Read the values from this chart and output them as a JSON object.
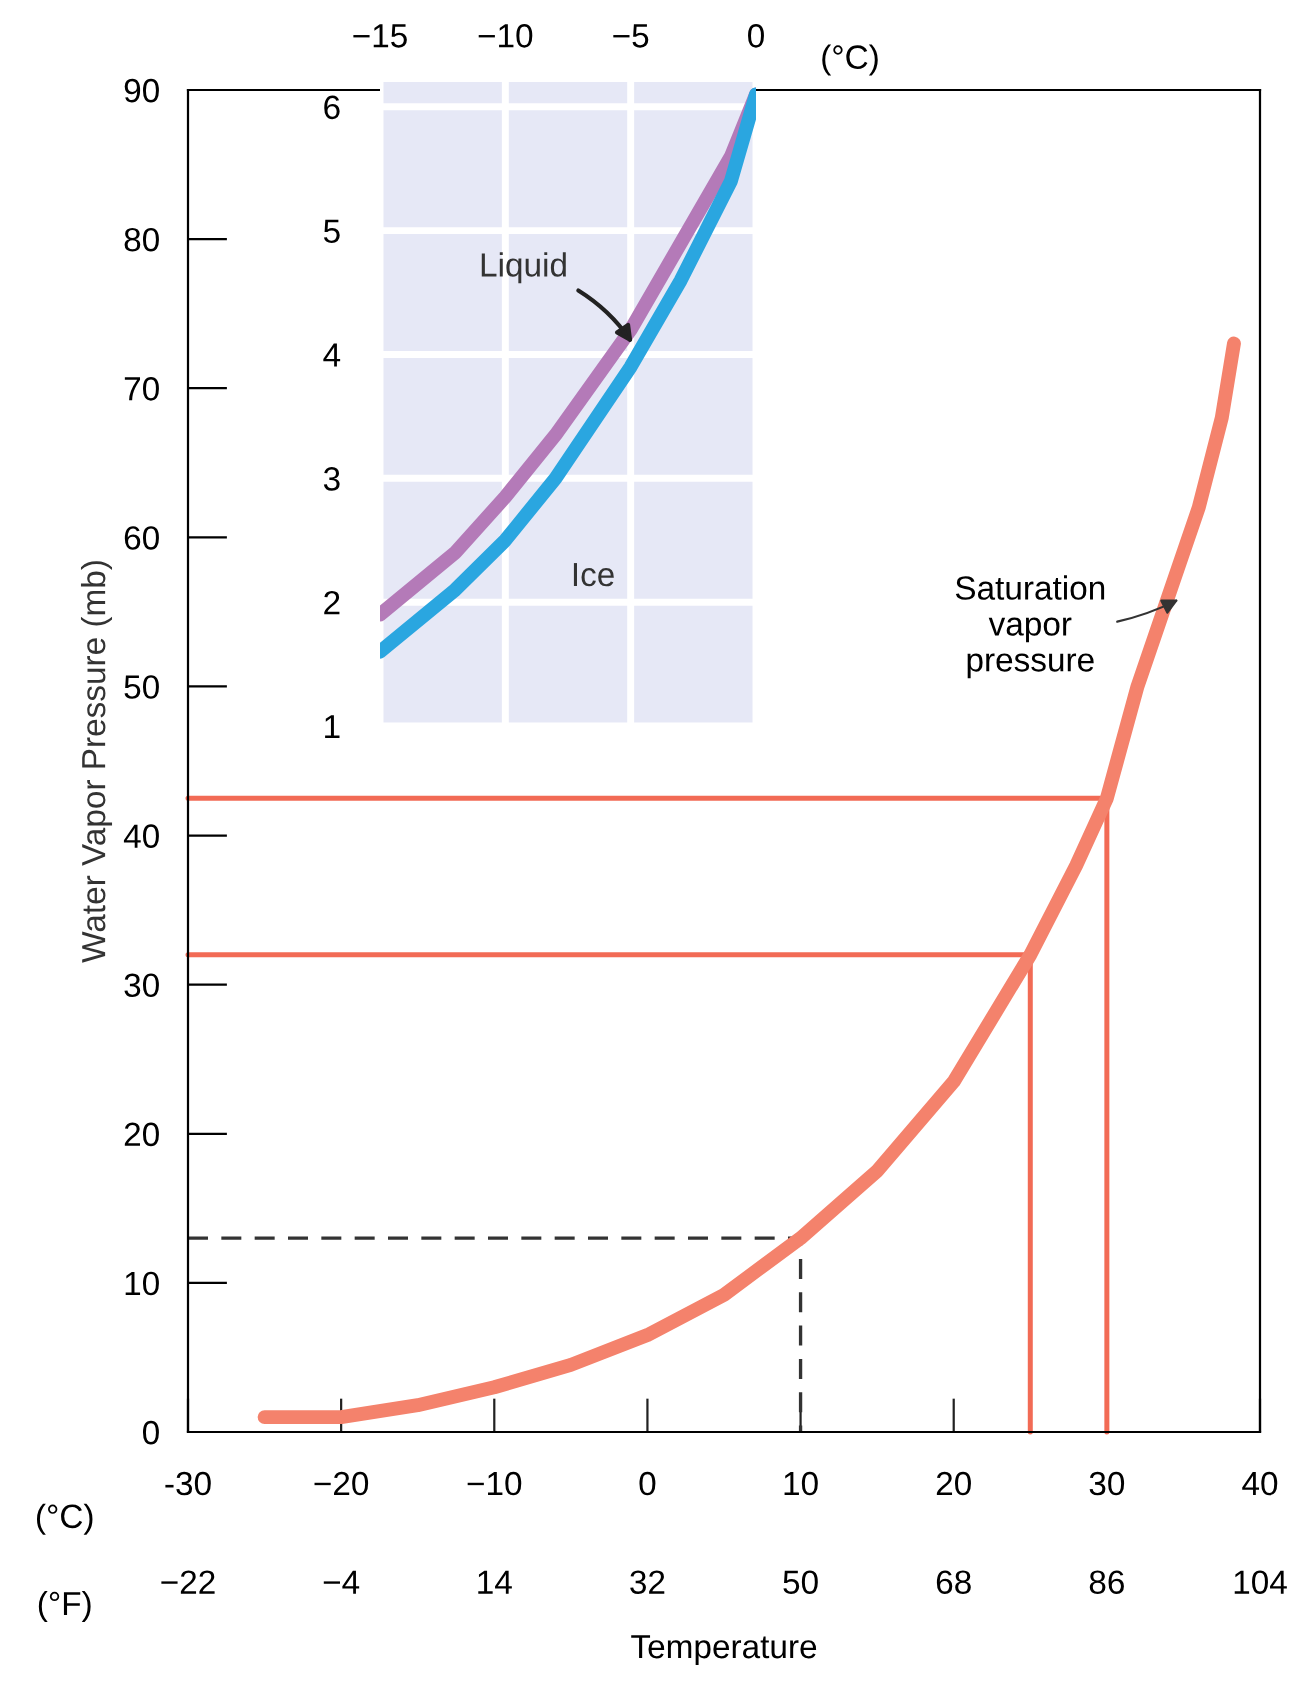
{
  "chart_data": [
    {
      "type": "line",
      "xlabel": "Temperature",
      "ylabel": "Water Vapor Pressure (mb)",
      "xlim": [
        -30,
        40
      ],
      "xticks": [
        -30,
        {
          "value": -20,
          "label": "−20"
        },
        {
          "value": -10,
          "label": "−10"
        },
        0,
        10,
        20,
        30,
        40
      ],
      "x2lim": [
        -22,
        104
      ],
      "x2ticks": [
        {
          "value": -22,
          "label": "−22"
        },
        {
          "value": -4,
          "label": "−4"
        },
        14,
        32,
        50,
        68,
        86,
        104
      ],
      "ylim": [
        0,
        90
      ],
      "yticks": [
        0,
        10,
        20,
        30,
        40,
        50,
        60,
        70,
        80,
        90
      ],
      "grid": false,
      "series": [
        {
          "color": "#f4826c",
          "x": [
            -25,
            -20,
            -15,
            -10,
            -5,
            0,
            5,
            10,
            15,
            20,
            25,
            28,
            30,
            32,
            34,
            36,
            37.5,
            38.3
          ],
          "values": [
            1,
            1,
            1.8,
            3,
            4.5,
            6.5,
            9.2,
            13,
            17.5,
            23.5,
            32,
            38,
            42.5,
            50,
            56,
            62,
            68,
            73
          ]
        },
        {
          "color": "#f26b55",
          "x": [
            -30,
            30,
            30
          ],
          "values": [
            42.5,
            42.5,
            0
          ]
        },
        {
          "color": "#f26b55",
          "x": [
            -30,
            25,
            25
          ],
          "values": [
            32,
            32,
            0
          ]
        },
        {
          "color": "#333333",
          "line_style": "dashed",
          "x": [
            -30,
            10,
            10
          ],
          "values": [
            13,
            13,
            0
          ]
        }
      ],
      "annotations": [
        "(°C)",
        "(°F)",
        {
          "text": "Saturation\nvapor\npressure",
          "x": 35,
          "y": 56
        }
      ]
    },
    {
      "type": "line",
      "xlabel": "(°C)",
      "xlim": [
        -15,
        0
      ],
      "xticks": [
        {
          "value": -15,
          "label": "−15"
        },
        {
          "value": -10,
          "label": "−10"
        },
        {
          "value": -5,
          "label": "−5"
        },
        0
      ],
      "ylim": [
        1,
        6.2
      ],
      "yticks": [
        1,
        2,
        3,
        4,
        5,
        6
      ],
      "grid": true,
      "series": [
        {
          "name": "Liquid",
          "color": "#b47ab8",
          "x": [
            -15,
            -12,
            -10,
            -8,
            -5,
            -3,
            -1,
            0
          ],
          "values": [
            1.9,
            2.4,
            2.85,
            3.35,
            4.2,
            4.9,
            5.6,
            6.1
          ]
        },
        {
          "name": "Ice",
          "color": "#2aa6e0",
          "x": [
            -15,
            -12,
            -10,
            -8,
            -5,
            -3,
            -1,
            0
          ],
          "values": [
            1.6,
            2.1,
            2.5,
            3.0,
            3.9,
            4.6,
            5.4,
            6.1
          ]
        }
      ]
    }
  ]
}
